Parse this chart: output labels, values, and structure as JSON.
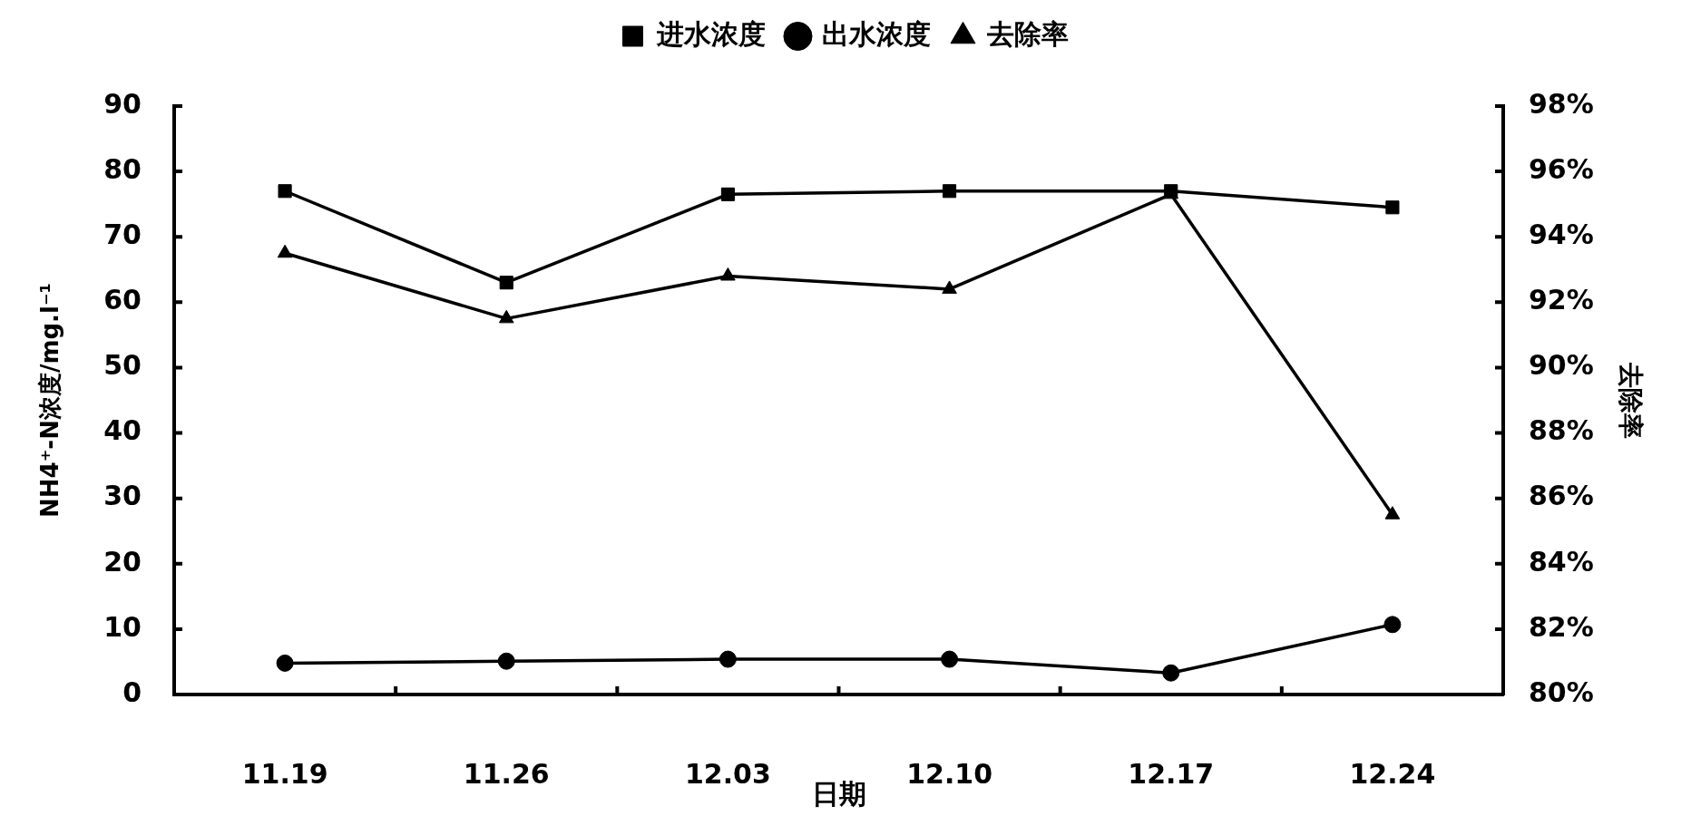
{
  "chart_data": {
    "type": "line",
    "categories": [
      "11.19",
      "11.26",
      "12.03",
      "12.10",
      "12.17",
      "12.24"
    ],
    "xlabel": "日期",
    "ylabel": "NH4⁺-N浓度/mg.l⁻¹",
    "y2label": "去除率",
    "series": [
      {
        "name": "进水浓度",
        "color": "#000000",
        "marker": "square",
        "values": [
          77,
          63,
          76.5,
          77,
          77,
          74.5
        ]
      },
      {
        "name": "出水浓度",
        "color": "#000000",
        "marker": "circle",
        "values": [
          4.8,
          5.1,
          5.4,
          5.4,
          3.3,
          10.7
        ]
      },
      {
        "name": "去除率",
        "color": "#000000",
        "marker": "triangle",
        "axis": "y2",
        "values": [
          93.5,
          91.5,
          92.8,
          92.4,
          95.3,
          85.5
        ]
      }
    ],
    "ylim": [
      0,
      90
    ],
    "yticks": [
      0,
      10,
      20,
      30,
      40,
      50,
      60,
      70,
      80,
      90
    ],
    "y2lim": [
      80,
      98
    ],
    "y2ticks": [
      {
        "value": 80,
        "label": "80%"
      },
      {
        "value": 82,
        "label": "82%"
      },
      {
        "value": 84,
        "label": "84%"
      },
      {
        "value": 86,
        "label": "86%"
      },
      {
        "value": 88,
        "label": "88%"
      },
      {
        "value": 90,
        "label": "90%"
      },
      {
        "value": 92,
        "label": "92%"
      },
      {
        "value": 94,
        "label": "94%"
      },
      {
        "value": 96,
        "label": "96%"
      },
      {
        "value": 98,
        "label": "98%"
      }
    ],
    "legend": "top",
    "grid": false
  }
}
